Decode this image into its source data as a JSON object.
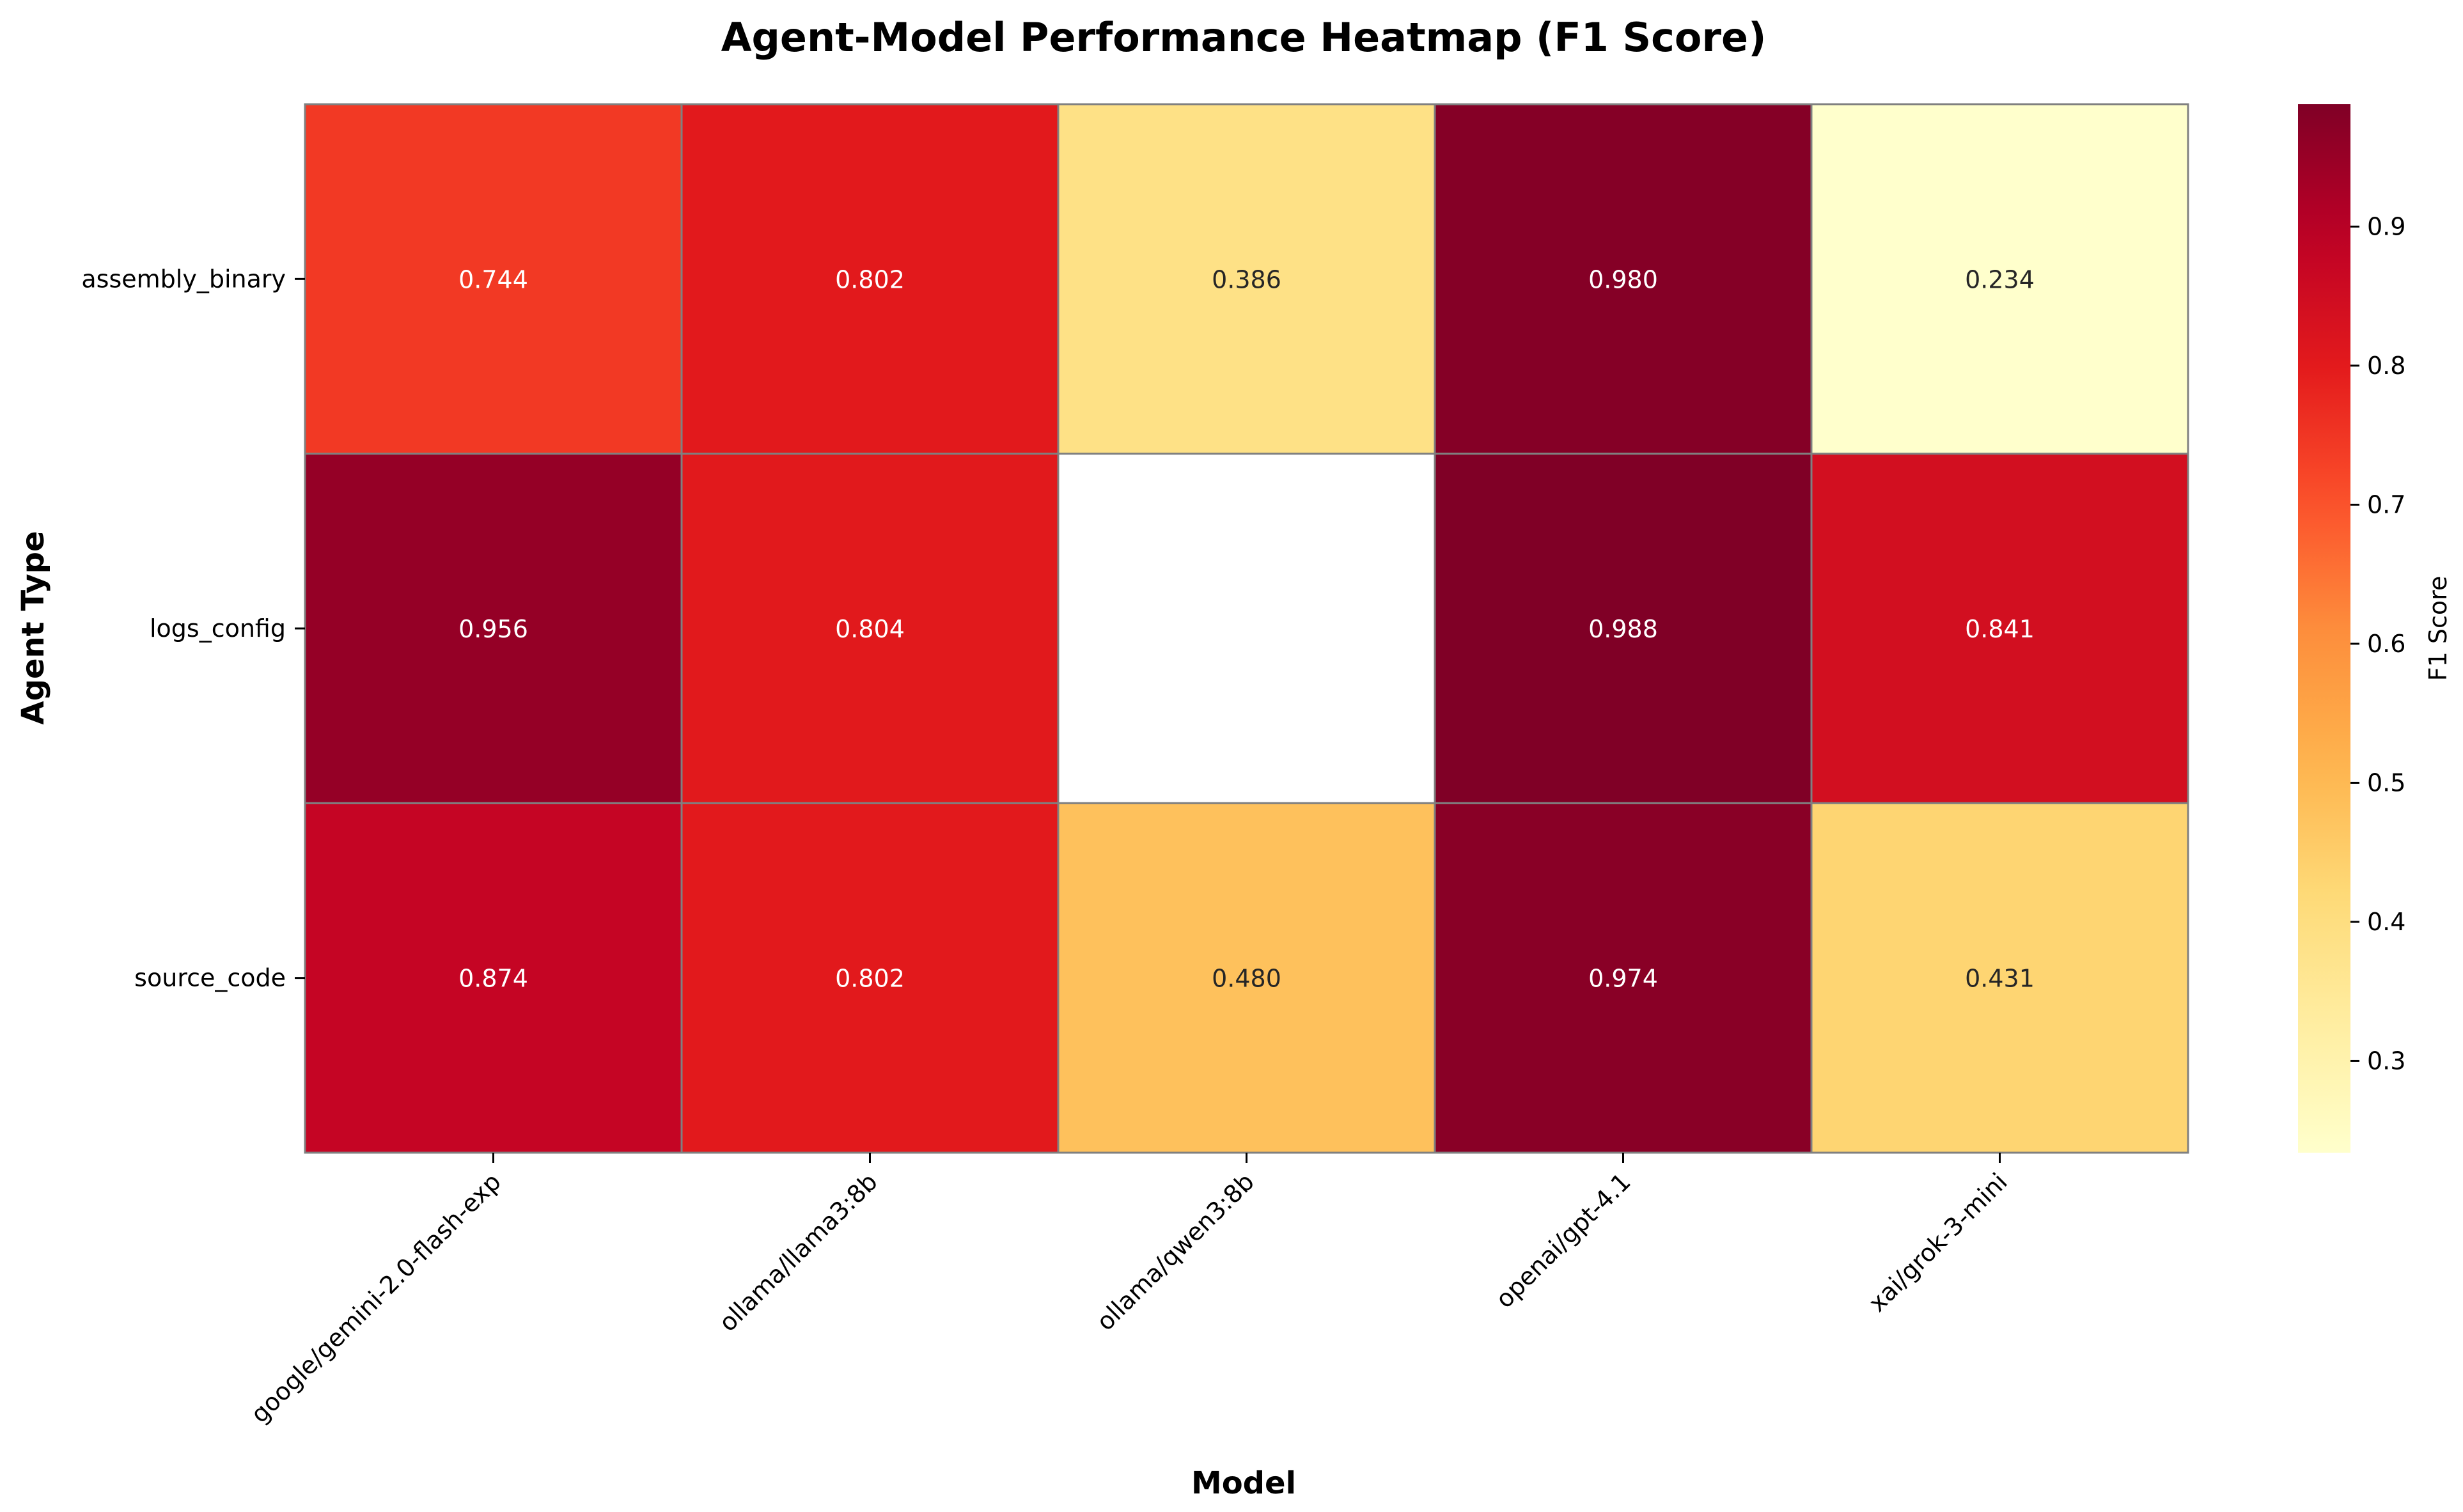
{
  "chart_data": {
    "type": "heatmap",
    "title": "Agent-Model Performance Heatmap (F1 Score)",
    "xlabel": "Model",
    "ylabel": "Agent Type",
    "x_categories": [
      "google/gemini-2.0-flash-exp",
      "ollama/llama3:8b",
      "ollama/qwen3:8b",
      "openai/gpt-4.1",
      "xai/grok-3-mini"
    ],
    "y_categories": [
      "assembly_binary",
      "logs_config",
      "source_code"
    ],
    "values": [
      [
        0.744,
        0.802,
        0.386,
        0.98,
        0.234
      ],
      [
        0.956,
        0.804,
        null,
        0.988,
        0.841
      ],
      [
        0.874,
        0.802,
        0.48,
        0.974,
        0.431
      ]
    ],
    "value_labels": [
      [
        "0.744",
        "0.802",
        "0.386",
        "0.980",
        "0.234"
      ],
      [
        "0.956",
        "0.804",
        "",
        "0.988",
        "0.841"
      ],
      [
        "0.874",
        "0.802",
        "0.480",
        "0.974",
        "0.431"
      ]
    ],
    "colorbar": {
      "label": "F1 Score",
      "vmin": 0.234,
      "vmax": 0.988,
      "ticks": [
        0.3,
        0.4,
        0.5,
        0.6,
        0.7,
        0.8,
        0.9
      ],
      "tick_labels": [
        "0.3",
        "0.4",
        "0.5",
        "0.6",
        "0.7",
        "0.8",
        "0.9"
      ],
      "colormap": "YlOrRd"
    }
  }
}
